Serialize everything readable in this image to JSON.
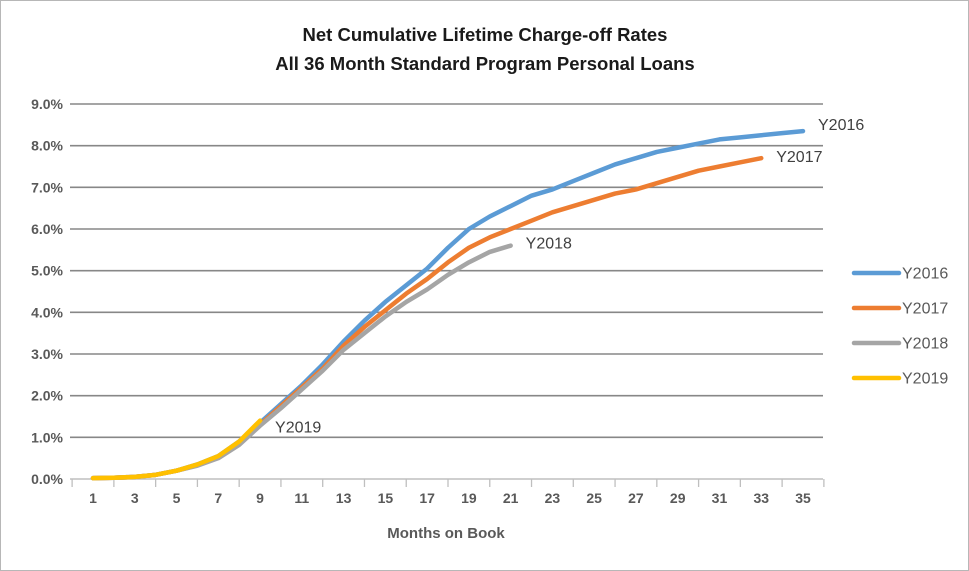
{
  "chart_data": {
    "type": "line",
    "title": "Net Cumulative Lifetime Charge-off Rates",
    "subtitle": "All 36 Month Standard Program Personal Loans",
    "xlabel": "Months on Book",
    "ylabel": "",
    "x_tick_labels": [
      1,
      3,
      5,
      7,
      9,
      11,
      13,
      15,
      17,
      19,
      21,
      23,
      25,
      27,
      29,
      31,
      33,
      35
    ],
    "y_tick_labels": [
      "0.0%",
      "1.0%",
      "2.0%",
      "3.0%",
      "4.0%",
      "5.0%",
      "6.0%",
      "7.0%",
      "8.0%",
      "9.0%"
    ],
    "ylim": [
      0,
      9
    ],
    "xlim": [
      1,
      35
    ],
    "grid": "horizontal",
    "legend_position": "right",
    "legend_entries": [
      "Y2016",
      "Y2017",
      "Y2018",
      "Y2019"
    ],
    "series": [
      {
        "name": "Y2016",
        "color": "#5B9BD5",
        "end_label": "Y2016",
        "x_start": 1,
        "values": [
          0.02,
          0.03,
          0.05,
          0.1,
          0.2,
          0.35,
          0.55,
          0.9,
          1.35,
          1.8,
          2.25,
          2.75,
          3.3,
          3.8,
          4.25,
          4.65,
          5.05,
          5.55,
          6.0,
          6.3,
          6.55,
          6.8,
          6.95,
          7.15,
          7.35,
          7.55,
          7.7,
          7.85,
          7.95,
          8.05,
          8.15,
          8.2,
          8.25,
          8.3,
          8.35
        ]
      },
      {
        "name": "Y2017",
        "color": "#ED7D31",
        "end_label": "Y2017",
        "x_start": 1,
        "values": [
          0.02,
          0.03,
          0.05,
          0.1,
          0.2,
          0.33,
          0.52,
          0.85,
          1.3,
          1.75,
          2.2,
          2.65,
          3.2,
          3.65,
          4.05,
          4.45,
          4.8,
          5.2,
          5.55,
          5.8,
          6.0,
          6.2,
          6.4,
          6.55,
          6.7,
          6.85,
          6.95,
          7.1,
          7.25,
          7.4,
          7.5,
          7.6,
          7.7
        ]
      },
      {
        "name": "Y2018",
        "color": "#A5A5A5",
        "end_label": "Y2018",
        "x_start": 1,
        "values": [
          0.02,
          0.03,
          0.05,
          0.1,
          0.2,
          0.32,
          0.5,
          0.82,
          1.28,
          1.7,
          2.15,
          2.6,
          3.1,
          3.5,
          3.9,
          4.25,
          4.55,
          4.9,
          5.2,
          5.45,
          5.6
        ]
      },
      {
        "name": "Y2019",
        "color": "#FFC000",
        "end_label": "Y2019",
        "x_start": 1,
        "values": [
          0.02,
          0.03,
          0.05,
          0.1,
          0.2,
          0.35,
          0.55,
          0.9,
          1.4
        ]
      }
    ],
    "colors": {
      "series_blue": "#5B9BD5",
      "series_orange": "#ED7D31",
      "series_gray": "#A5A5A5",
      "series_yellow": "#FFC000",
      "gridline": "#878787",
      "axis_line": "#BFBFBF",
      "tick_text": "#595959",
      "end_label_text": "#404040",
      "title_text": "#1a1a1a",
      "background": "#FFFFFF"
    }
  }
}
